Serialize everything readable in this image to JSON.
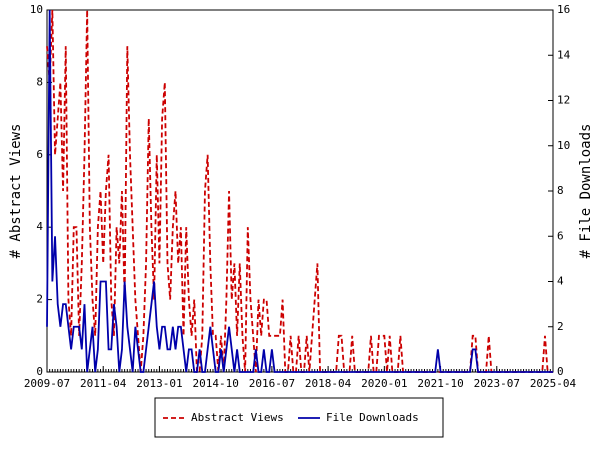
{
  "chart_data": {
    "type": "line",
    "x": [
      "2009-07",
      "2009-08",
      "2009-09",
      "2009-10",
      "2009-11",
      "2009-12",
      "2010-01",
      "2010-02",
      "2010-03",
      "2010-04",
      "2010-05",
      "2010-06",
      "2010-07",
      "2010-08",
      "2010-09",
      "2010-10",
      "2010-11",
      "2010-12",
      "2011-01",
      "2011-02",
      "2011-03",
      "2011-04",
      "2011-05",
      "2011-06",
      "2011-07",
      "2011-08",
      "2011-09",
      "2011-10",
      "2011-11",
      "2011-12",
      "2012-01",
      "2012-02",
      "2012-03",
      "2012-04",
      "2012-05",
      "2012-06",
      "2012-07",
      "2012-08",
      "2012-09",
      "2012-10",
      "2012-11",
      "2012-12",
      "2013-01",
      "2013-02",
      "2013-03",
      "2013-04",
      "2013-05",
      "2013-06",
      "2013-07",
      "2013-08",
      "2013-09",
      "2013-10",
      "2013-11",
      "2013-12",
      "2014-01",
      "2014-02",
      "2014-03",
      "2014-04",
      "2014-05",
      "2014-06",
      "2014-07",
      "2014-08",
      "2014-09",
      "2014-10",
      "2014-11",
      "2014-12",
      "2015-01",
      "2015-02",
      "2015-03",
      "2015-04",
      "2015-05",
      "2015-06",
      "2015-07",
      "2015-08",
      "2015-09",
      "2015-10",
      "2015-11",
      "2015-12",
      "2016-01",
      "2016-02",
      "2016-03",
      "2016-04",
      "2016-05",
      "2016-06",
      "2016-07",
      "2016-08",
      "2016-09",
      "2016-10",
      "2016-11",
      "2016-12",
      "2017-01",
      "2017-02",
      "2017-03",
      "2017-04",
      "2017-05",
      "2017-06",
      "2017-07",
      "2017-08",
      "2017-09",
      "2017-10",
      "2017-11",
      "2017-12",
      "2018-01",
      "2018-02",
      "2018-03",
      "2018-04",
      "2018-05",
      "2018-06",
      "2018-07",
      "2018-08",
      "2018-09",
      "2018-10",
      "2018-11",
      "2018-12",
      "2019-01",
      "2019-02",
      "2019-03",
      "2019-04",
      "2019-05",
      "2019-06",
      "2019-07",
      "2019-08",
      "2019-09",
      "2019-10",
      "2019-11",
      "2019-12",
      "2020-01",
      "2020-02",
      "2020-03",
      "2020-04",
      "2020-05",
      "2020-06",
      "2020-07",
      "2020-08",
      "2020-09",
      "2020-10",
      "2020-11",
      "2020-12",
      "2021-01",
      "2021-02",
      "2021-03",
      "2021-04",
      "2021-05",
      "2021-06",
      "2021-07",
      "2021-08",
      "2021-09",
      "2021-10",
      "2021-11",
      "2021-12",
      "2022-01",
      "2022-02",
      "2022-03",
      "2022-04",
      "2022-05",
      "2022-06",
      "2022-07",
      "2022-08",
      "2022-09",
      "2022-10",
      "2022-11",
      "2022-12",
      "2023-01",
      "2023-02",
      "2023-03",
      "2023-04",
      "2023-05",
      "2023-06",
      "2023-07",
      "2023-08",
      "2023-09",
      "2023-10",
      "2023-11",
      "2023-12",
      "2024-01",
      "2024-02",
      "2024-03",
      "2024-04",
      "2024-05",
      "2024-06",
      "2024-07",
      "2024-08",
      "2024-09",
      "2024-10",
      "2024-11",
      "2024-12",
      "2025-01",
      "2025-02",
      "2025-03",
      "2025-04"
    ],
    "xticks": [
      "2009-07",
      "2011-04",
      "2013-01",
      "2014-10",
      "2016-07",
      "2018-04",
      "2020-01",
      "2021-10",
      "2023-07",
      "2025-04"
    ],
    "ylabel": "# Abstract Views",
    "y2label": "# File Downloads",
    "ylim": [
      0,
      10
    ],
    "yticks": [
      0,
      2,
      4,
      6,
      8,
      10
    ],
    "y2lim": [
      0,
      16
    ],
    "y2ticks": [
      0,
      2,
      4,
      6,
      8,
      10,
      12,
      14,
      16
    ],
    "series": [
      {
        "name": "Abstract Views",
        "color": "#cc0000",
        "dashed": true,
        "axis": "y",
        "values": [
          9,
          8,
          10,
          6,
          7,
          8,
          5,
          9,
          2,
          1,
          4,
          4,
          1,
          3,
          6,
          10,
          4,
          2,
          1,
          4,
          5,
          3,
          5,
          6,
          2,
          1,
          4,
          3,
          5,
          2,
          9,
          6,
          4,
          2,
          1,
          0,
          1,
          3,
          7,
          4,
          2,
          6,
          3,
          7,
          8,
          3,
          2,
          4,
          5,
          3,
          4,
          1,
          4,
          2,
          1,
          2,
          0,
          0,
          1,
          5,
          6,
          3,
          1,
          1,
          0,
          1,
          0,
          2,
          5,
          2,
          3,
          1,
          3,
          1,
          0,
          4,
          2,
          1,
          0,
          2,
          1,
          2,
          2,
          1,
          1,
          1,
          1,
          1,
          2,
          0,
          0,
          1,
          0,
          0,
          1,
          0,
          0,
          1,
          0,
          1,
          2,
          3,
          0,
          0,
          0,
          0,
          0,
          0,
          0,
          1,
          1,
          0,
          0,
          0,
          1,
          0,
          0,
          0,
          0,
          0,
          0,
          1,
          0,
          0,
          1,
          1,
          1,
          0,
          1,
          0,
          0,
          0,
          1,
          0,
          0,
          0,
          0,
          0,
          0,
          0,
          0,
          0,
          0,
          0,
          0,
          0,
          0,
          0,
          0,
          0,
          0,
          0,
          0,
          0,
          0,
          0,
          0,
          0,
          0,
          1,
          1,
          0,
          0,
          0,
          0,
          1,
          0,
          0,
          0,
          0,
          0,
          0,
          0,
          0,
          0,
          0,
          0,
          0,
          0,
          0,
          0,
          0,
          0,
          0,
          0,
          0,
          1,
          0,
          0,
          0
        ]
      },
      {
        "name": "File Downloads",
        "color": "#0000aa",
        "dashed": false,
        "axis": "y2",
        "values": [
          2,
          16,
          4,
          6,
          3,
          2,
          3,
          3,
          2,
          1,
          2,
          2,
          2,
          1,
          3,
          0,
          1,
          2,
          0,
          1,
          4,
          4,
          4,
          1,
          1,
          3,
          2,
          0,
          1,
          4,
          2,
          1,
          0,
          2,
          1,
          0,
          0,
          1,
          2,
          3,
          4,
          2,
          1,
          2,
          2,
          1,
          1,
          2,
          1,
          2,
          2,
          1,
          0,
          1,
          1,
          0,
          0,
          1,
          0,
          0,
          1,
          2,
          1,
          0,
          0,
          1,
          0,
          1,
          2,
          1,
          0,
          1,
          0,
          0,
          0,
          0,
          0,
          0,
          1,
          0,
          0,
          1,
          0,
          0,
          1,
          0,
          0,
          0,
          0,
          0,
          0,
          0,
          0,
          0,
          0,
          0,
          0,
          0,
          0,
          0,
          0,
          0,
          0,
          0,
          0,
          0,
          0,
          0,
          0,
          0,
          0,
          0,
          0,
          0,
          0,
          0,
          0,
          0,
          0,
          0,
          0,
          0,
          0,
          0,
          0,
          0,
          0,
          0,
          0,
          0,
          0,
          0,
          0,
          0,
          0,
          0,
          0,
          0,
          0,
          0,
          0,
          0,
          0,
          0,
          0,
          0,
          1,
          0,
          0,
          0,
          0,
          0,
          0,
          0,
          0,
          0,
          0,
          0,
          0,
          1,
          1,
          0,
          0,
          0,
          0,
          0,
          0,
          0,
          0,
          0,
          0,
          0,
          0,
          0,
          0,
          0,
          0,
          0,
          0,
          0,
          0,
          0,
          0,
          0,
          0,
          0,
          0,
          0,
          0,
          0
        ]
      }
    ]
  }
}
